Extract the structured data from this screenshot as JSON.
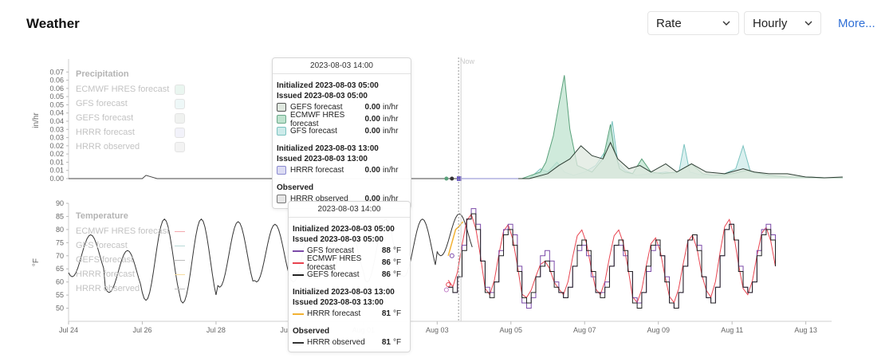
{
  "header": {
    "title": "Weather",
    "more_label": "More..."
  },
  "controls": {
    "rate_value": "Rate",
    "interval_value": "Hourly"
  },
  "now_label": "Now",
  "precipitation": {
    "legend_title": "Precipitation",
    "unit_label": "in/hr",
    "legend": [
      "ECMWF HRES forecast",
      "GFS forecast",
      "GEFS forecast",
      "HRRR forecast",
      "HRRR observed"
    ],
    "tooltip": {
      "time": "2023-08-03 14:00",
      "group1_initialized": "Initialized 2023-08-03 05:00",
      "group1_issued": "Issued 2023-08-03 05:00",
      "rows1": [
        {
          "name": "GEFS forecast",
          "value": "0.00",
          "unit": "in/hr"
        },
        {
          "name": "ECMWF HRES forecast",
          "value": "0.00",
          "unit": "in/hr"
        },
        {
          "name": "GFS forecast",
          "value": "0.00",
          "unit": "in/hr"
        }
      ],
      "group2_initialized": "Initialized 2023-08-03 13:00",
      "group2_issued": "Issued 2023-08-03 13:00",
      "rows2": [
        {
          "name": "HRRR forecast",
          "value": "0.00",
          "unit": "in/hr"
        }
      ],
      "observed_title": "Observed",
      "rows3": [
        {
          "name": "HRRR observed",
          "value": "0.00",
          "unit": "in/hr"
        }
      ]
    }
  },
  "temperature": {
    "legend_title": "Temperature",
    "unit_label": "°F",
    "legend": [
      "ECMWF HRES forecast",
      "GFS forecast",
      "GEFS forecast",
      "HRRR forecast",
      "HRRR observed"
    ],
    "tooltip": {
      "time": "2023-08-03 14:00",
      "group1_initialized": "Initialized 2023-08-03 05:00",
      "group1_issued": "Issued 2023-08-03 05:00",
      "rows1": [
        {
          "name": "GFS forecast",
          "value": "88",
          "unit": "°F"
        },
        {
          "name": "ECMWF HRES forecast",
          "value": "86",
          "unit": "°F"
        },
        {
          "name": "GEFS forecast",
          "value": "86",
          "unit": "°F"
        }
      ],
      "group2_initialized": "Initialized 2023-08-03 13:00",
      "group2_issued": "Issued 2023-08-03 13:00",
      "rows2": [
        {
          "name": "HRRR forecast",
          "value": "81",
          "unit": "°F"
        }
      ],
      "observed_title": "Observed",
      "rows3": [
        {
          "name": "HRRR observed",
          "value": "81",
          "unit": "°F"
        }
      ]
    }
  },
  "colors": {
    "ecmwf": "#e8434f",
    "gfs": "#7b4aa8",
    "gefs": "#222222",
    "hrrr": "#f2b233",
    "observed": "#333333",
    "ecmwf_fill": "#bfe3cf",
    "gfs_fill": "#cdebea",
    "gefs_fill": "#dfe8df",
    "hrrr_fill": "#dcdcf3",
    "observed_fill": "#e6e6e6",
    "accent_link": "#2f6fd6"
  },
  "chart_data": [
    {
      "type": "area",
      "name": "Precipitation",
      "ylabel": "in/hr",
      "ylim": [
        0,
        0.07
      ],
      "yticks": [
        "0.00",
        "0.01",
        "0.01",
        "0.02",
        "0.02",
        "0.03",
        "0.03",
        "0.04",
        "0.04",
        "0.05",
        "0.05",
        "0.06",
        "0.06",
        "0.07"
      ],
      "x_start": "2023-07-24",
      "x_end": "2023-08-14",
      "xticks": [
        "Jul 24",
        "Jul 26",
        "Jul 28",
        "Jul 30",
        "Aug 01",
        "Aug 03",
        "Aug 05",
        "Aug 07",
        "Aug 09",
        "Aug 11",
        "Aug 13"
      ],
      "now": 10.58,
      "series": [
        {
          "name": "HRRR observed",
          "x": [
            0,
            2.0,
            2.1,
            2.25,
            2.4,
            10.6
          ],
          "y": [
            0,
            0,
            0.002,
            0.001,
            0,
            0
          ]
        },
        {
          "name": "ECMWF HRES forecast",
          "x": [
            10.6,
            12.3,
            12.8,
            12.95,
            13.15,
            13.3,
            13.45,
            13.6,
            13.8,
            14.2,
            14.5,
            14.7,
            14.8,
            14.95,
            15.1,
            15.3,
            15.55,
            15.8,
            16.1,
            16.5,
            16.9,
            17.2,
            17.5,
            18.0,
            18.4,
            19.0,
            19.5,
            20.0,
            20.5,
            21.0
          ],
          "y": [
            0,
            0,
            0.004,
            0.01,
            0.026,
            0.045,
            0.063,
            0.03,
            0.008,
            0.004,
            0.012,
            0.033,
            0.018,
            0.006,
            0.004,
            0.003,
            0.012,
            0.004,
            0.003,
            0.004,
            0.009,
            0.003,
            0.002,
            0.003,
            0.005,
            0.002,
            0.001,
            0.001,
            0.0005,
            0.0005
          ]
        },
        {
          "name": "GFS forecast",
          "x": [
            10.6,
            12.5,
            12.8,
            13.0,
            13.25,
            13.45,
            13.7,
            14.0,
            14.3,
            14.6,
            14.75,
            14.9,
            15.1,
            15.4,
            15.8,
            16.2,
            16.55,
            16.7,
            16.85,
            17.2,
            17.7,
            18.1,
            18.3,
            18.5,
            18.9,
            19.5,
            20.0,
            21.0
          ],
          "y": [
            0,
            0,
            0.006,
            0.004,
            0.01,
            0.004,
            0.002,
            0.004,
            0.008,
            0.018,
            0.035,
            0.01,
            0.005,
            0.002,
            0.003,
            0.004,
            0.003,
            0.021,
            0.004,
            0.002,
            0.002,
            0.006,
            0.02,
            0.004,
            0.002,
            0.001,
            0.0005,
            0.0005
          ]
        },
        {
          "name": "GEFS forecast",
          "x": [
            10.6,
            12.5,
            13.0,
            13.3,
            13.6,
            13.9,
            14.2,
            14.5,
            14.7,
            14.9,
            15.2,
            15.5,
            15.8,
            16.2,
            16.5,
            16.9,
            17.3,
            17.8,
            18.3,
            18.6,
            19.0,
            19.5,
            20.0,
            20.5,
            21.0
          ],
          "y": [
            0,
            0,
            0.003,
            0.008,
            0.012,
            0.02,
            0.014,
            0.012,
            0.022,
            0.012,
            0.006,
            0.008,
            0.004,
            0.009,
            0.004,
            0.009,
            0.004,
            0.003,
            0.006,
            0.004,
            0.003,
            0.003,
            0.001,
            0.0005,
            0.001
          ]
        },
        {
          "name": "HRRR forecast",
          "x": [
            10.6,
            11.5,
            12.2
          ],
          "y": [
            0,
            0,
            0
          ]
        }
      ]
    },
    {
      "type": "line",
      "name": "Temperature",
      "ylabel": "°F",
      "ylim": [
        45,
        90
      ],
      "yticks": [
        "50",
        "55",
        "60",
        "65",
        "70",
        "75",
        "80",
        "85",
        "90"
      ],
      "x_start": "2023-07-24",
      "x_end": "2023-08-14",
      "xticks": [
        "Jul 24",
        "Jul 26",
        "Jul 28",
        "Jul 30",
        "Aug 01",
        "Aug 03",
        "Aug 05",
        "Aug 07",
        "Aug 09",
        "Aug 11",
        "Aug 13"
      ],
      "now": 10.58,
      "series": [
        {
          "name": "HRRR observed",
          "x_start": 0,
          "step": 0.125,
          "highs": [
            78,
            72,
            84,
            84,
            83,
            82,
            82,
            82,
            84,
            84,
            86
          ],
          "lows": [
            62,
            56,
            53,
            52,
            58,
            60,
            60,
            62,
            60,
            62,
            70
          ]
        },
        {
          "name": "GFS forecast",
          "x_start": 10.3,
          "step": 0.125,
          "highs": [
            88,
            83,
            72,
            75,
            75,
            75,
            79,
            83,
            83
          ],
          "lows": [
            55,
            55,
            50,
            54,
            55,
            51,
            50,
            52,
            55
          ]
        },
        {
          "name": "ECMWF HRES forecast",
          "x_start": 10.3,
          "step": 0.125,
          "highs": [
            86,
            82,
            68,
            80,
            80,
            77,
            78,
            84,
            81
          ],
          "lows": [
            58,
            55,
            54,
            55,
            55,
            52,
            52,
            54,
            55
          ]
        },
        {
          "name": "GEFS forecast",
          "x_start": 10.3,
          "step": 0.125,
          "highs": [
            86,
            80,
            68,
            76,
            76,
            76,
            78,
            82,
            81
          ],
          "lows": [
            55,
            54,
            52,
            54,
            54,
            50,
            50,
            52,
            55
          ]
        },
        {
          "name": "HRRR forecast",
          "x": [
            10.3,
            10.5,
            10.58,
            10.7
          ],
          "y": [
            70,
            80,
            81,
            83
          ]
        }
      ]
    }
  ]
}
